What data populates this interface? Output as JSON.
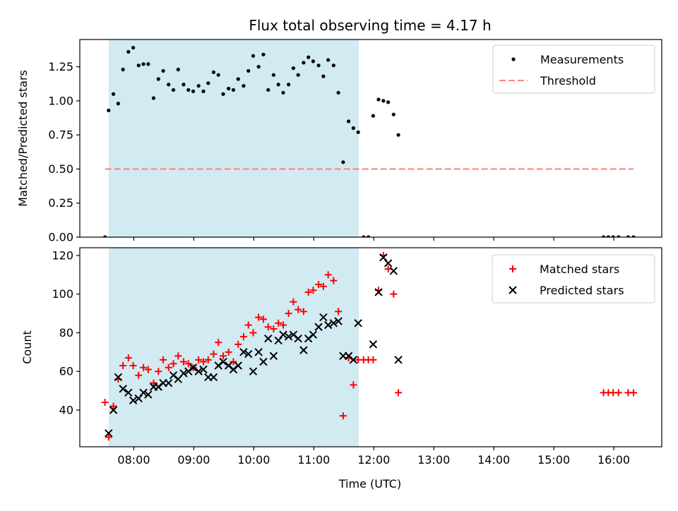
{
  "chart_data": {
    "title": "Flux total observing time = 4.17 h",
    "xlabel": "Time (UTC)",
    "x_unit": "hours UTC",
    "xlim": [
      7.1,
      16.8
    ],
    "x_ticks": [
      {
        "value": 8,
        "label": "08:00"
      },
      {
        "value": 9,
        "label": "09:00"
      },
      {
        "value": 10,
        "label": "10:00"
      },
      {
        "value": 11,
        "label": "11:00"
      },
      {
        "value": 12,
        "label": "12:00"
      },
      {
        "value": 13,
        "label": "13:00"
      },
      {
        "value": 14,
        "label": "14:00"
      },
      {
        "value": 15,
        "label": "15:00"
      },
      {
        "value": 16,
        "label": "16:00"
      }
    ],
    "shaded_region": {
      "x": [
        7.58,
        11.75
      ],
      "color": "#add8e6"
    },
    "panels": [
      {
        "type": "scatter",
        "ylabel": "Matched/Predicted stars",
        "ylim": [
          0,
          1.45
        ],
        "y_ticks": [
          {
            "value": 0.0,
            "label": "0.00"
          },
          {
            "value": 0.25,
            "label": "0.25"
          },
          {
            "value": 0.5,
            "label": "0.50"
          },
          {
            "value": 0.75,
            "label": "0.75"
          },
          {
            "value": 1.0,
            "label": "1.00"
          },
          {
            "value": 1.25,
            "label": "1.25"
          }
        ],
        "legend_position": "top-right",
        "series": [
          {
            "name": "Measurements",
            "marker": "dot",
            "color": "#000000",
            "points": [
              [
                7.52,
                0.0
              ],
              [
                7.58,
                0.93
              ],
              [
                7.66,
                1.05
              ],
              [
                7.74,
                0.98
              ],
              [
                7.82,
                1.23
              ],
              [
                7.91,
                1.36
              ],
              [
                7.99,
                1.39
              ],
              [
                8.08,
                1.26
              ],
              [
                8.16,
                1.27
              ],
              [
                8.24,
                1.27
              ],
              [
                8.33,
                1.02
              ],
              [
                8.41,
                1.16
              ],
              [
                8.49,
                1.22
              ],
              [
                8.58,
                1.12
              ],
              [
                8.66,
                1.08
              ],
              [
                8.74,
                1.23
              ],
              [
                8.83,
                1.12
              ],
              [
                8.91,
                1.08
              ],
              [
                8.99,
                1.07
              ],
              [
                9.08,
                1.11
              ],
              [
                9.16,
                1.07
              ],
              [
                9.24,
                1.13
              ],
              [
                9.33,
                1.21
              ],
              [
                9.41,
                1.19
              ],
              [
                9.49,
                1.05
              ],
              [
                9.58,
                1.09
              ],
              [
                9.66,
                1.08
              ],
              [
                9.74,
                1.16
              ],
              [
                9.83,
                1.11
              ],
              [
                9.91,
                1.22
              ],
              [
                9.99,
                1.33
              ],
              [
                10.08,
                1.25
              ],
              [
                10.16,
                1.34
              ],
              [
                10.24,
                1.08
              ],
              [
                10.33,
                1.19
              ],
              [
                10.41,
                1.12
              ],
              [
                10.49,
                1.06
              ],
              [
                10.58,
                1.12
              ],
              [
                10.66,
                1.24
              ],
              [
                10.74,
                1.19
              ],
              [
                10.83,
                1.28
              ],
              [
                10.91,
                1.32
              ],
              [
                10.99,
                1.29
              ],
              [
                11.08,
                1.26
              ],
              [
                11.16,
                1.18
              ],
              [
                11.24,
                1.3
              ],
              [
                11.33,
                1.26
              ],
              [
                11.41,
                1.06
              ],
              [
                11.49,
                0.55
              ],
              [
                11.58,
                0.85
              ],
              [
                11.66,
                0.8
              ],
              [
                11.74,
                0.77
              ],
              [
                11.83,
                0.0
              ],
              [
                11.91,
                0.0
              ],
              [
                11.99,
                0.89
              ],
              [
                12.08,
                1.01
              ],
              [
                12.16,
                1.0
              ],
              [
                12.24,
                0.99
              ],
              [
                12.33,
                0.9
              ],
              [
                12.41,
                0.75
              ],
              [
                15.83,
                0.0
              ],
              [
                15.91,
                0.0
              ],
              [
                15.99,
                0.0
              ],
              [
                16.08,
                0.0
              ],
              [
                16.24,
                0.0
              ],
              [
                16.33,
                0.0
              ]
            ]
          }
        ],
        "threshold": {
          "name": "Threshold",
          "y": 0.5,
          "x_range": [
            7.52,
            16.33
          ],
          "color": "#ff7f7f"
        }
      },
      {
        "type": "scatter",
        "ylabel": "Count",
        "ylim": [
          21,
          124
        ],
        "y_ticks": [
          {
            "value": 40,
            "label": "40"
          },
          {
            "value": 60,
            "label": "60"
          },
          {
            "value": 80,
            "label": "80"
          },
          {
            "value": 100,
            "label": "100"
          },
          {
            "value": 120,
            "label": "120"
          }
        ],
        "legend_position": "top-right",
        "series": [
          {
            "name": "Matched stars",
            "marker": "plus",
            "color": "#ff0000",
            "points": [
              [
                7.52,
                44
              ],
              [
                7.58,
                26
              ],
              [
                7.66,
                42
              ],
              [
                7.74,
                56
              ],
              [
                7.82,
                63
              ],
              [
                7.91,
                67
              ],
              [
                7.99,
                63
              ],
              [
                8.08,
                58
              ],
              [
                8.16,
                62
              ],
              [
                8.24,
                61
              ],
              [
                8.33,
                54
              ],
              [
                8.41,
                60
              ],
              [
                8.49,
                66
              ],
              [
                8.58,
                62
              ],
              [
                8.66,
                64
              ],
              [
                8.74,
                68
              ],
              [
                8.83,
                65
              ],
              [
                8.91,
                64
              ],
              [
                8.99,
                62
              ],
              [
                9.08,
                66
              ],
              [
                9.16,
                65
              ],
              [
                9.24,
                66
              ],
              [
                9.33,
                69
              ],
              [
                9.41,
                75
              ],
              [
                9.49,
                68
              ],
              [
                9.58,
                70
              ],
              [
                9.66,
                65
              ],
              [
                9.74,
                74
              ],
              [
                9.83,
                78
              ],
              [
                9.91,
                84
              ],
              [
                9.99,
                80
              ],
              [
                10.08,
                88
              ],
              [
                10.16,
                87
              ],
              [
                10.24,
                83
              ],
              [
                10.33,
                82
              ],
              [
                10.41,
                85
              ],
              [
                10.49,
                84
              ],
              [
                10.58,
                90
              ],
              [
                10.66,
                96
              ],
              [
                10.74,
                92
              ],
              [
                10.83,
                91
              ],
              [
                10.91,
                101
              ],
              [
                10.99,
                102
              ],
              [
                11.08,
                105
              ],
              [
                11.16,
                104
              ],
              [
                11.24,
                110
              ],
              [
                11.33,
                107
              ],
              [
                11.41,
                91
              ],
              [
                11.49,
                37
              ],
              [
                11.58,
                67
              ],
              [
                11.66,
                53
              ],
              [
                11.74,
                66
              ],
              [
                11.83,
                66
              ],
              [
                11.91,
                66
              ],
              [
                11.99,
                66
              ],
              [
                12.08,
                102
              ],
              [
                12.16,
                120
              ],
              [
                12.24,
                113
              ],
              [
                12.33,
                100
              ],
              [
                12.41,
                49
              ],
              [
                15.83,
                49
              ],
              [
                15.91,
                49
              ],
              [
                15.99,
                49
              ],
              [
                16.08,
                49
              ],
              [
                16.24,
                49
              ],
              [
                16.33,
                49
              ]
            ]
          },
          {
            "name": "Predicted stars",
            "marker": "x",
            "color": "#000000",
            "points": [
              [
                7.58,
                28
              ],
              [
                7.66,
                40
              ],
              [
                7.74,
                57
              ],
              [
                7.82,
                51
              ],
              [
                7.91,
                49
              ],
              [
                7.99,
                45
              ],
              [
                8.08,
                46
              ],
              [
                8.16,
                49
              ],
              [
                8.24,
                48
              ],
              [
                8.33,
                52
              ],
              [
                8.41,
                52
              ],
              [
                8.49,
                54
              ],
              [
                8.58,
                54
              ],
              [
                8.66,
                58
              ],
              [
                8.74,
                56
              ],
              [
                8.83,
                59
              ],
              [
                8.91,
                60
              ],
              [
                8.99,
                62
              ],
              [
                9.08,
                60
              ],
              [
                9.16,
                61
              ],
              [
                9.24,
                57
              ],
              [
                9.33,
                57
              ],
              [
                9.41,
                63
              ],
              [
                9.49,
                65
              ],
              [
                9.58,
                63
              ],
              [
                9.66,
                61
              ],
              [
                9.74,
                63
              ],
              [
                9.83,
                70
              ],
              [
                9.91,
                69
              ],
              [
                9.99,
                60
              ],
              [
                10.08,
                70
              ],
              [
                10.16,
                65
              ],
              [
                10.24,
                77
              ],
              [
                10.33,
                68
              ],
              [
                10.41,
                76
              ],
              [
                10.49,
                79
              ],
              [
                10.58,
                78
              ],
              [
                10.66,
                79
              ],
              [
                10.74,
                77
              ],
              [
                10.83,
                71
              ],
              [
                10.91,
                77
              ],
              [
                10.99,
                79
              ],
              [
                11.08,
                83
              ],
              [
                11.16,
                88
              ],
              [
                11.24,
                84
              ],
              [
                11.33,
                85
              ],
              [
                11.41,
                86
              ],
              [
                11.49,
                68
              ],
              [
                11.58,
                68
              ],
              [
                11.66,
                66
              ],
              [
                11.74,
                85
              ],
              [
                11.99,
                74
              ],
              [
                12.08,
                101
              ],
              [
                12.16,
                119
              ],
              [
                12.24,
                116
              ],
              [
                12.33,
                112
              ],
              [
                12.41,
                66
              ]
            ]
          }
        ]
      }
    ]
  }
}
